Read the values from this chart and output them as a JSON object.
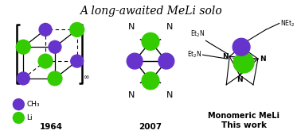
{
  "title": "A long-awaited MeLi solo",
  "title_fontsize": 10,
  "bg_color": "#ffffff",
  "purple": "#6633cc",
  "green": "#33cc00",
  "label_1964": "1964",
  "label_2007": "2007",
  "label_thiswork": "This work",
  "label_monomeric": "Monomeric MeLi",
  "legend_ch3": "CH₃",
  "legend_li": "Li"
}
